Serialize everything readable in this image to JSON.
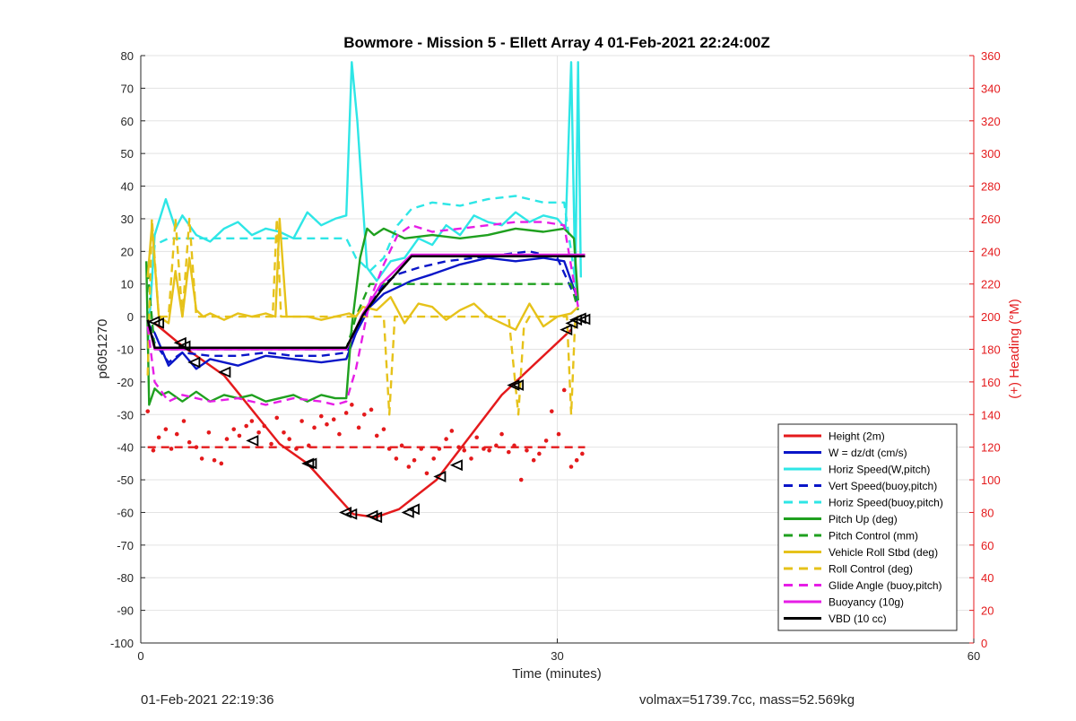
{
  "chart_data": {
    "type": "line",
    "title": "Bowmore - Mission 5 - Ellett Array 4 01-Feb-2021 22:24:00Z",
    "xlabel": "Time (minutes)",
    "ylabel": "p6051270",
    "y2label": "(+) Heading (°M)",
    "xlim": [
      0,
      60
    ],
    "ylim": [
      -100,
      80
    ],
    "y2lim": [
      0,
      360
    ],
    "xticks": [
      0,
      30,
      60
    ],
    "yticks": [
      -100,
      -90,
      -80,
      -70,
      -60,
      -50,
      -40,
      -30,
      -20,
      -10,
      0,
      10,
      20,
      30,
      40,
      50,
      60,
      70,
      80
    ],
    "y2ticks": [
      0,
      20,
      40,
      60,
      80,
      100,
      120,
      140,
      160,
      180,
      200,
      220,
      240,
      260,
      280,
      300,
      320,
      340,
      360
    ],
    "grid": "on",
    "legend_position": "bottom-right",
    "series": [
      {
        "name": "Height (2m)",
        "color": "#e41a1c",
        "style": "solid",
        "x": [
          1,
          3,
          6,
          10,
          12,
          15.3,
          16.9,
          18.6,
          21.3,
          26,
          31
        ],
        "y": [
          -2,
          -9,
          -18,
          -39,
          -45,
          -60.5,
          -61.5,
          -59,
          -50,
          -24,
          -4
        ]
      },
      {
        "name": "W = dz/dt (cm/s)",
        "color": "#0a16c8",
        "style": "solid",
        "x": [
          0.5,
          1,
          2,
          3,
          4,
          5,
          7,
          9,
          11,
          13,
          14.8,
          15.5,
          16.5,
          17.5,
          18.5,
          19.5,
          21,
          23,
          25,
          27,
          29,
          30.5,
          31.5
        ],
        "y": [
          -2,
          -5,
          -15,
          -11,
          -16,
          -13,
          -15,
          -12,
          -13,
          -14,
          -13,
          -5,
          3,
          7,
          9,
          11,
          13,
          16,
          18,
          17,
          18,
          17,
          5
        ]
      },
      {
        "name": "Horiz Speed(W,pitch)",
        "color": "#2ee6e6",
        "style": "solid",
        "x": [
          0.5,
          1,
          1.8,
          2.5,
          3,
          4,
          5,
          6,
          7,
          8,
          9,
          10,
          11,
          12,
          13,
          14,
          14.8,
          15.2,
          15.6,
          16.3,
          17,
          18,
          19,
          20,
          21,
          22,
          23,
          24,
          25,
          26,
          27,
          28,
          29,
          30,
          30.6,
          31,
          31.3,
          31.5,
          31.7
        ],
        "y": [
          -10,
          25,
          36,
          27,
          31,
          25,
          23,
          27,
          29,
          25,
          27,
          26,
          24,
          32,
          28,
          30,
          31,
          78,
          60,
          15,
          11,
          17,
          18,
          24,
          22,
          28,
          25,
          31,
          29,
          28,
          32,
          29,
          31,
          30,
          27,
          78,
          10,
          78,
          12
        ]
      },
      {
        "name": "Vert Speed(buoy,pitch)",
        "color": "#0a16c8",
        "style": "dashed",
        "x": [
          0.5,
          1,
          2,
          3,
          5,
          7,
          9,
          11,
          13,
          14.8,
          15.5,
          16.5,
          17.5,
          18.5,
          20,
          22,
          24,
          26,
          28,
          30,
          31.5
        ],
        "y": [
          -2,
          -8,
          -14,
          -11,
          -12,
          -12,
          -11,
          -12,
          -12,
          -11,
          -5,
          4,
          10,
          13,
          15,
          17,
          18,
          19,
          20,
          18,
          4
        ]
      },
      {
        "name": "Horiz Speed(buoy,pitch)",
        "color": "#2ee6e6",
        "style": "dashed",
        "x": [
          0.5,
          1,
          2,
          4,
          6,
          8,
          10,
          12,
          14,
          14.8,
          15.5,
          16.5,
          17.5,
          18.5,
          19.5,
          21,
          23,
          25,
          27,
          29,
          30.5,
          31.5
        ],
        "y": [
          -5,
          22,
          24,
          24,
          24,
          24,
          24,
          24,
          24,
          24,
          18,
          14,
          18,
          28,
          33,
          35,
          34,
          36,
          37,
          35,
          35,
          5
        ]
      },
      {
        "name": "Pitch Up (deg)",
        "color": "#1fa01f",
        "style": "solid",
        "x": [
          0.4,
          0.6,
          1,
          1.5,
          2,
          3,
          4,
          5,
          6,
          7,
          8,
          9,
          10,
          11,
          12,
          13,
          14,
          14.8,
          15.2,
          15.8,
          16.3,
          16.8,
          17.5,
          19,
          21,
          23,
          25,
          27,
          29,
          30.5,
          31.2,
          31.5
        ],
        "y": [
          17,
          -27,
          -22,
          -24,
          -23,
          -26,
          -23,
          -26,
          -24,
          -25,
          -24,
          -26,
          -25,
          -24,
          -26,
          -24,
          -25,
          -25,
          -3,
          18,
          27,
          25,
          27,
          24,
          25,
          24,
          25,
          27,
          26,
          27,
          24,
          5
        ]
      },
      {
        "name": "Pitch Control (mm)",
        "color": "#1fa01f",
        "style": "dashed",
        "x": [
          0.5,
          1,
          14.8,
          15.5,
          16.5,
          31,
          31.5
        ],
        "y": [
          14,
          -10,
          -10,
          0,
          10,
          10,
          2
        ]
      },
      {
        "name": "Vehicle Roll Stbd (deg)",
        "color": "#e6c21a",
        "style": "solid",
        "x": [
          0.5,
          0.8,
          1.3,
          2,
          2.5,
          3,
          3.5,
          4,
          4.5,
          5,
          6,
          7,
          8,
          9,
          9.7,
          10,
          10.5,
          11,
          12,
          13,
          14,
          15,
          15.5,
          16,
          17,
          18,
          19,
          20,
          21,
          22,
          23,
          24,
          25,
          26,
          27,
          28,
          29,
          30,
          31,
          31.5
        ],
        "y": [
          12,
          28,
          0,
          -2,
          14,
          0,
          18,
          2,
          0,
          1,
          -1,
          1,
          0,
          1,
          0,
          30,
          0,
          0,
          0,
          -1,
          0,
          1,
          0,
          3,
          2,
          6,
          -2,
          4,
          3,
          -1,
          2,
          4,
          0,
          -2,
          -4,
          4,
          -3,
          0,
          1,
          3
        ]
      },
      {
        "name": "Roll Control (deg)",
        "color": "#e6c21a",
        "style": "dashed",
        "x": [
          0.5,
          0.8,
          1.3,
          2,
          2.5,
          3,
          3.5,
          4,
          4.5,
          5,
          9.5,
          9.8,
          10.1,
          10.5,
          15,
          16.6,
          17.5,
          17.9,
          18.3,
          19,
          26.5,
          27.2,
          27.6,
          28,
          30.7,
          31,
          31.3,
          31.6
        ],
        "y": [
          -18,
          30,
          0,
          0,
          30,
          0,
          30,
          0,
          0,
          0,
          0,
          30,
          0,
          0,
          0,
          0,
          0,
          -30,
          0,
          0,
          0,
          -30,
          -3,
          0,
          0,
          -30,
          0,
          0
        ]
      },
      {
        "name": "Glide Angle (buoy,pitch)",
        "color": "#e61ee6",
        "style": "dashed",
        "x": [
          0.5,
          1,
          2,
          3,
          5,
          7,
          9,
          11,
          13,
          14,
          14.8,
          15.5,
          16.5,
          17.5,
          18.5,
          19.5,
          21,
          23,
          25,
          27,
          29,
          30.5,
          31.5
        ],
        "y": [
          -3,
          -20,
          -26,
          -24,
          -26,
          -25,
          -27,
          -25,
          -26,
          -27,
          -26,
          -16,
          5,
          16,
          25,
          28,
          26,
          27,
          28,
          29,
          29,
          28,
          3
        ]
      },
      {
        "name": "Buoyancy (10g)",
        "color": "#e61ee6",
        "style": "solid",
        "x": [
          0.5,
          1,
          14.8,
          16,
          17.3,
          19.5,
          31,
          32
        ],
        "y": [
          -1,
          -10,
          -10,
          1,
          10,
          19,
          19,
          19
        ]
      },
      {
        "name": "VBD (10 cc)",
        "color": "#000000",
        "style": "solid",
        "x": [
          0.5,
          1,
          14.8,
          16,
          17.3,
          19.5,
          31,
          32
        ],
        "y": [
          -1,
          -9.5,
          -9.5,
          0.5,
          8,
          18.5,
          18.5,
          18.5
        ]
      },
      {
        "name": "",
        "color": "#e41a1c",
        "style": "dashed",
        "axis": "right",
        "x": [
          0.5,
          32
        ],
        "y": [
          120,
          120
        ]
      },
      {
        "name": "",
        "color": "#e41a1c",
        "style": "markers",
        "axis": "right",
        "x": [
          0.5,
          0.9,
          1.3,
          1.8,
          2.2,
          2.6,
          3.1,
          3.5,
          4,
          4.4,
          4.9,
          5.3,
          5.8,
          6.2,
          6.7,
          7.1,
          7.6,
          8,
          8.5,
          8.9,
          9.4,
          9.8,
          10.3,
          10.7,
          11.2,
          11.6,
          12.1,
          12.5,
          13,
          13.4,
          13.9,
          14.3,
          14.8,
          15.2,
          15.7,
          16.1,
          16.6,
          17,
          17.5,
          17.9,
          18.4,
          18.8,
          19.3,
          19.7,
          20.2,
          20.6,
          21.1,
          21.5,
          22,
          22.4,
          22.9,
          23.3,
          23.8,
          24.2,
          24.7,
          25.1,
          25.6,
          26,
          26.5,
          26.9,
          27.4,
          27.8,
          28.3,
          28.7,
          29.2,
          29.6,
          30.1,
          30.5,
          31,
          31.4,
          31.8
        ],
        "y": [
          142,
          118,
          126,
          131,
          119,
          128,
          136,
          123,
          120,
          113,
          129,
          112,
          110,
          125,
          131,
          127,
          133,
          136,
          129,
          133,
          122,
          138,
          129,
          125,
          119,
          136,
          121,
          132,
          139,
          134,
          137,
          128,
          141,
          146,
          132,
          140,
          143,
          127,
          131,
          119,
          113,
          121,
          108,
          112,
          119,
          104,
          113,
          119,
          125,
          130,
          120,
          118,
          113,
          126,
          119,
          118,
          121,
          128,
          117,
          121,
          100,
          118,
          112,
          116,
          124,
          142,
          128,
          155,
          108,
          112,
          116
        ]
      }
    ],
    "markers": {
      "name": "",
      "color": "#000000",
      "style": "triangles",
      "x": [
        1,
        1.3,
        2.9,
        3.2,
        3.9,
        6.1,
        8.1,
        12.1,
        12.3,
        14.8,
        15.2,
        16.7,
        17.0,
        19.3,
        19.7,
        21.6,
        22.8,
        26.9,
        27.2,
        30.7,
        31.1,
        31.4,
        31.7,
        32.0
      ],
      "y": [
        -1.5,
        -2,
        -8,
        -9,
        -14,
        -17,
        -38,
        -45,
        -45,
        -60,
        -60.5,
        -61,
        -61.5,
        -60,
        -59,
        -49,
        -45.5,
        -21,
        -21,
        -4,
        -2,
        -1,
        -0.5,
        -0.8
      ]
    }
  },
  "footer": {
    "left": "01-Feb-2021 22:19:36",
    "right": "volmax=51739.7cc, mass=52.569kg"
  }
}
